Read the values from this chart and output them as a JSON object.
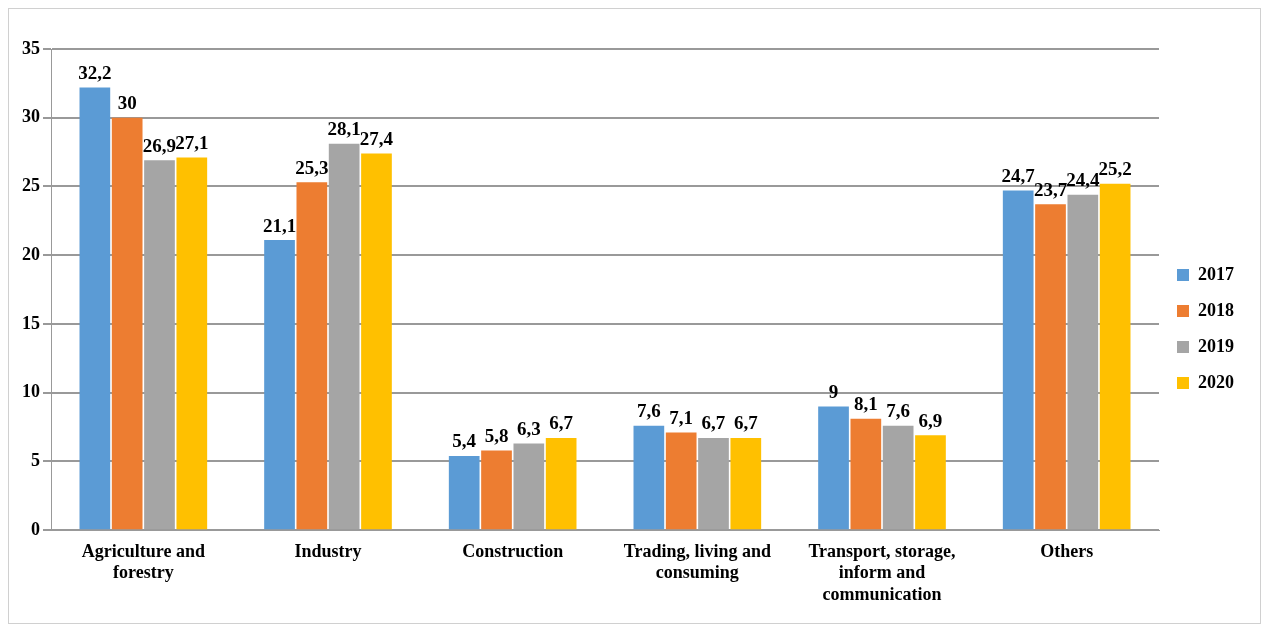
{
  "chart_data": {
    "type": "bar",
    "categories": [
      "Agriculture and forestry",
      "Industry",
      "Construction",
      "Trading, living and consuming",
      "Transport, storage, inform and communication",
      "Others"
    ],
    "series": [
      {
        "name": "2017",
        "color": "#5b9bd5",
        "values": [
          32.2,
          21.1,
          5.4,
          7.6,
          9,
          24.7
        ],
        "value_labels": [
          "32,2",
          "21,1",
          "5,4",
          "7,6",
          "9",
          "24,7"
        ]
      },
      {
        "name": "2018",
        "color": "#ed7d31",
        "values": [
          30,
          25.3,
          5.8,
          7.1,
          8.1,
          23.7
        ],
        "value_labels": [
          "30",
          "25,3",
          "5,8",
          "7,1",
          "8,1",
          "23,7"
        ]
      },
      {
        "name": "2019",
        "color": "#a5a5a5",
        "values": [
          26.9,
          28.1,
          6.3,
          6.7,
          7.6,
          24.4
        ],
        "value_labels": [
          "26,9",
          "28,1",
          "6,3",
          "6,7",
          "7,6",
          "24,4"
        ]
      },
      {
        "name": "2020",
        "color": "#ffc000",
        "values": [
          27.1,
          27.4,
          6.7,
          6.7,
          6.9,
          25.2
        ],
        "value_labels": [
          "27,1",
          "27,4",
          "6,7",
          "6,7",
          "6,9",
          "25,2"
        ]
      }
    ],
    "ylim": [
      0,
      35
    ],
    "yticks": [
      0,
      5,
      10,
      15,
      20,
      25,
      30,
      35
    ],
    "grid": "y",
    "legend": "right"
  }
}
